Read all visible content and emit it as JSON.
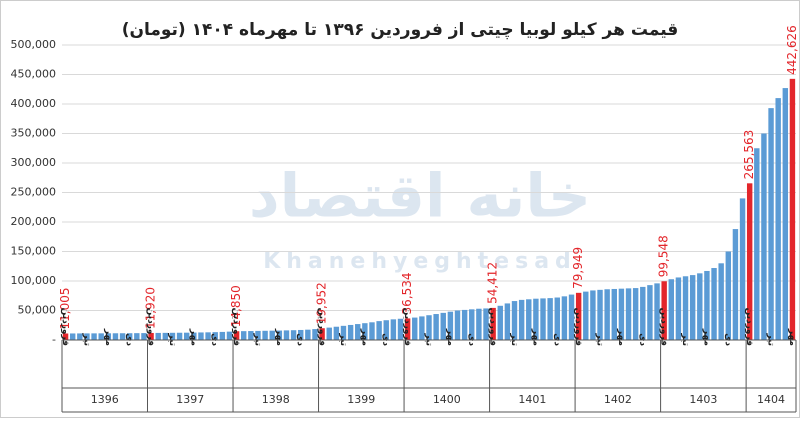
{
  "chart_data": {
    "type": "bar",
    "title": "قیمت هر کیلو لوبیا چیتی از فروردین ۱۳۹۶ تا مهرماه ۱۴۰۴ (تومان)",
    "watermark": [
      "خانه اقتصاد",
      "Khanehyeghtesad"
    ],
    "color": "#5b9bd5",
    "highlight_color": "#e3262b",
    "categories": [
      "فروردین",
      null,
      null,
      "تیر",
      null,
      null,
      "مهر",
      null,
      null,
      "دی",
      null,
      null,
      "فروردین",
      null,
      null,
      "تیر",
      null,
      null,
      "مهر",
      null,
      null,
      "دی",
      null,
      null,
      "فروردین",
      null,
      null,
      "تیر",
      null,
      null,
      "مهر",
      null,
      null,
      "دی",
      null,
      null,
      "فروردین",
      null,
      null,
      "تیر",
      null,
      null,
      "مهر",
      null,
      null,
      "دی",
      null,
      null,
      "فروردین",
      null,
      null,
      "تیر",
      null,
      null,
      "مهر",
      null,
      null,
      "دی",
      null,
      null,
      "فروردین",
      null,
      null,
      "تیر",
      null,
      null,
      "مهر",
      null,
      null,
      "دی",
      null,
      null,
      "فروردین",
      null,
      null,
      "تیر",
      null,
      null,
      "مهر",
      null,
      null,
      "دی",
      null,
      null,
      "فروردین",
      null,
      null,
      "تیر",
      null,
      null,
      "مهر",
      null,
      null,
      "دی",
      null,
      null,
      "فروردین",
      null,
      null,
      "تیر",
      null,
      null,
      "مهر"
    ],
    "years": [
      "1396",
      "1397",
      "1398",
      "1399",
      "1400",
      "1401",
      "1402",
      "1403",
      "1404"
    ],
    "values": [
      11005,
      11100,
      11150,
      11200,
      11250,
      11300,
      11350,
      11400,
      11450,
      11500,
      11600,
      11700,
      11920,
      12000,
      12100,
      12200,
      12300,
      12400,
      12600,
      12800,
      13000,
      13300,
      13700,
      14200,
      14850,
      15000,
      15200,
      15400,
      15600,
      15800,
      16000,
      16300,
      16600,
      17000,
      17500,
      18500,
      19952,
      21000,
      22500,
      24000,
      25500,
      27000,
      28500,
      30000,
      32000,
      33500,
      35000,
      36000,
      36534,
      38000,
      40000,
      42000,
      44000,
      46000,
      48000,
      50000,
      51000,
      52000,
      53000,
      53500,
      54412,
      58000,
      62000,
      66000,
      68000,
      69000,
      70000,
      70500,
      71000,
      72000,
      74000,
      77000,
      79949,
      82000,
      84000,
      85000,
      86000,
      86500,
      87000,
      87500,
      88000,
      90000,
      93000,
      96000,
      99548,
      103000,
      106000,
      108000,
      110000,
      113000,
      117000,
      122000,
      130000,
      150000,
      188000,
      240000,
      265563,
      325000,
      350000,
      393000,
      410000,
      427000,
      442626
    ],
    "value_labels": [
      "11,005",
      null,
      null,
      null,
      null,
      null,
      null,
      null,
      null,
      null,
      null,
      null,
      "11,920",
      null,
      null,
      null,
      null,
      null,
      null,
      null,
      null,
      null,
      null,
      null,
      "14,850",
      null,
      null,
      null,
      null,
      null,
      null,
      null,
      null,
      null,
      null,
      null,
      "19,952",
      null,
      null,
      null,
      null,
      null,
      null,
      null,
      null,
      null,
      null,
      null,
      "36,534",
      null,
      null,
      null,
      null,
      null,
      null,
      null,
      null,
      null,
      null,
      null,
      "54,412",
      null,
      null,
      null,
      null,
      null,
      null,
      null,
      null,
      null,
      null,
      null,
      "79,949",
      null,
      null,
      null,
      null,
      null,
      null,
      null,
      null,
      null,
      null,
      null,
      "99,548",
      null,
      null,
      null,
      null,
      null,
      null,
      null,
      null,
      null,
      null,
      null,
      "265,563",
      null,
      null,
      null,
      null,
      null,
      "442,626"
    ],
    "ylim": [
      0,
      500000
    ],
    "yticks": [
      {
        "value": 0,
        "label": "-"
      },
      {
        "value": 50000,
        "label": "50,000"
      },
      {
        "value": 100000,
        "label": "100,000"
      },
      {
        "value": 150000,
        "label": "150,000"
      },
      {
        "value": 200000,
        "label": "200,000"
      },
      {
        "value": 250000,
        "label": "250,000"
      },
      {
        "value": 300000,
        "label": "300,000"
      },
      {
        "value": 350000,
        "label": "350,000"
      },
      {
        "value": 400000,
        "label": "400,000"
      },
      {
        "value": 450000,
        "label": "450,000"
      },
      {
        "value": 500000,
        "label": "500,000"
      }
    ],
    "grid": true
  }
}
